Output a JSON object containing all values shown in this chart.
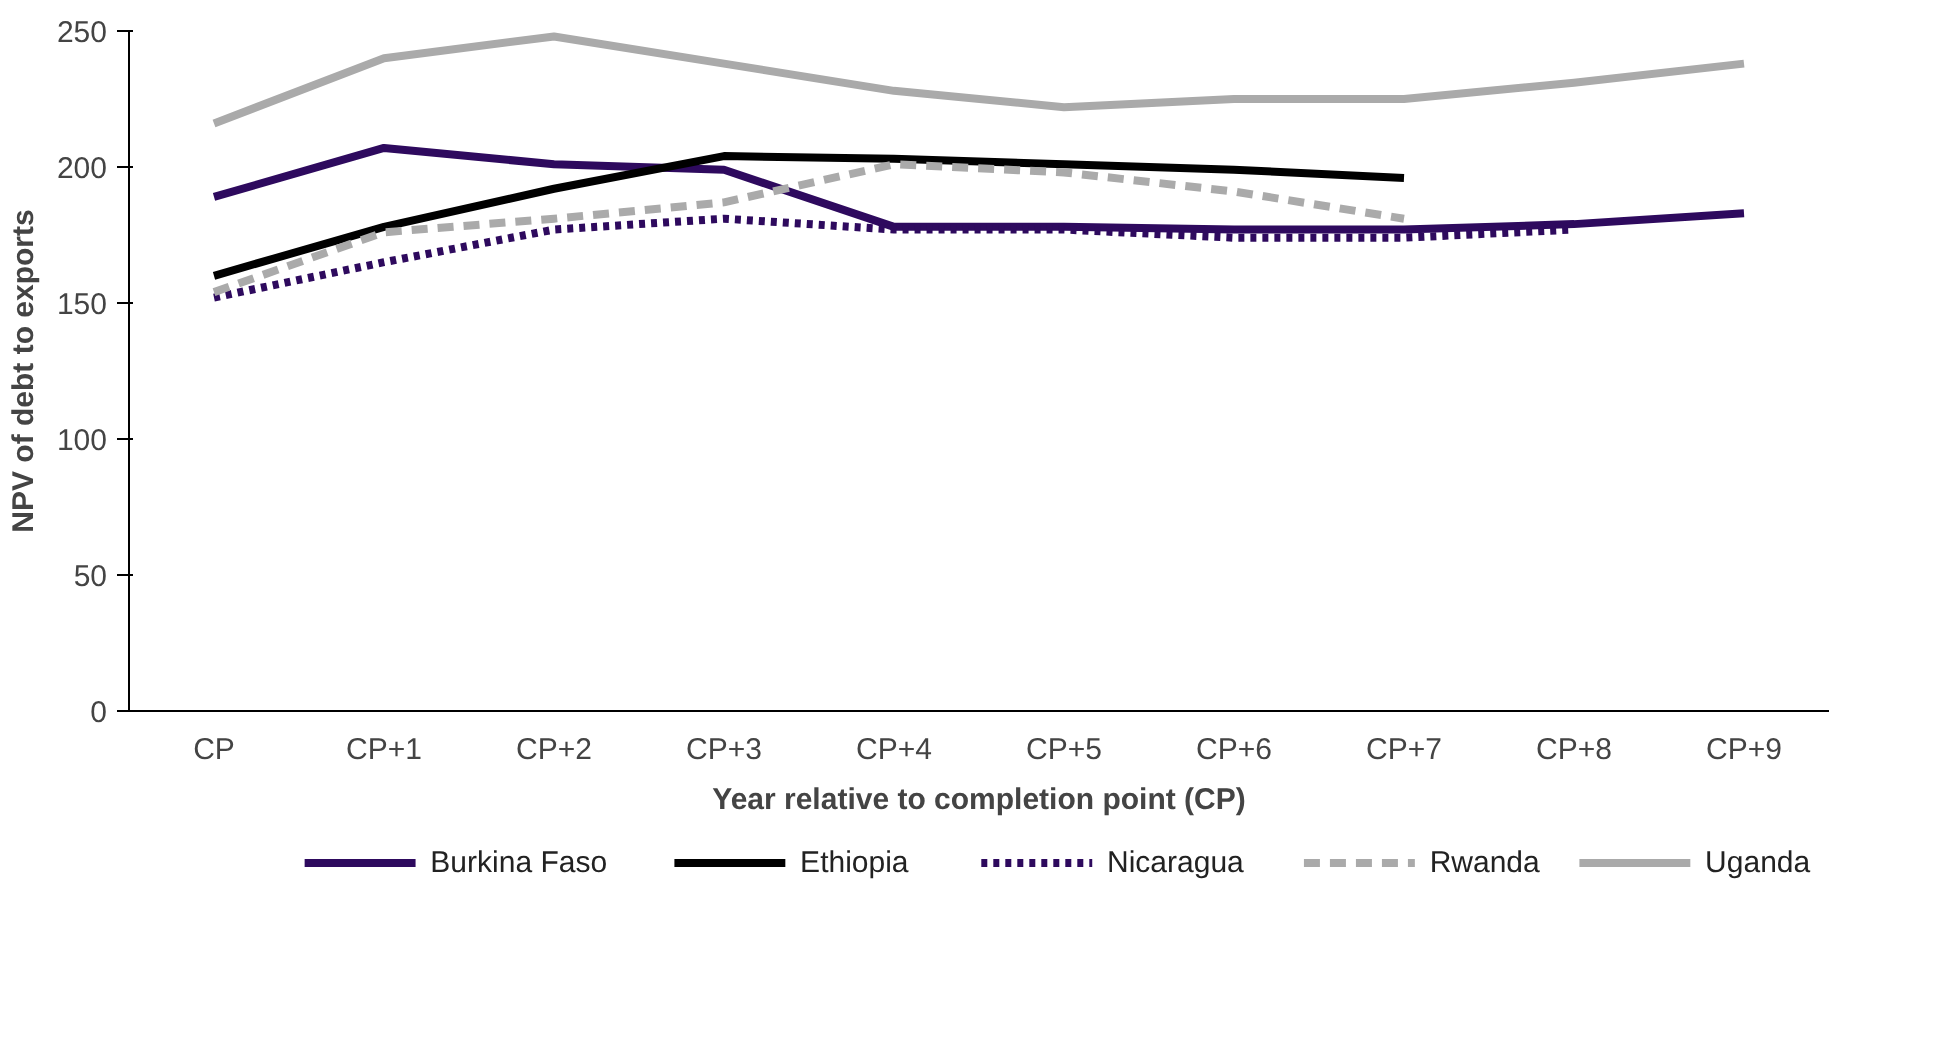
{
  "chart_data": {
    "type": "line",
    "xlabel": "Year relative to completion point (CP)",
    "ylabel": "NPV of debt to exports",
    "categories": [
      "CP",
      "CP+1",
      "CP+2",
      "CP+3",
      "CP+4",
      "CP+5",
      "CP+6",
      "CP+7",
      "CP+8",
      "CP+9"
    ],
    "ylim": [
      0,
      250
    ],
    "yticks": [
      0,
      50,
      100,
      150,
      200,
      250
    ],
    "grid": false,
    "legend": "bottom",
    "series": [
      {
        "name": "Burkina Faso",
        "color": "#2e0a5e",
        "line_style": "solid",
        "values": [
          189,
          207,
          201,
          199,
          178,
          178,
          177,
          177,
          179,
          183
        ]
      },
      {
        "name": "Ethiopia",
        "color": "#000000",
        "line_style": "solid",
        "values": [
          160,
          178,
          192,
          204,
          203,
          201,
          199,
          196,
          null,
          null
        ]
      },
      {
        "name": "Nicaragua",
        "color": "#2e0a5e",
        "line_style": "dotted",
        "values": [
          152,
          165,
          177,
          181,
          177,
          177,
          174,
          174,
          177,
          null
        ]
      },
      {
        "name": "Rwanda",
        "color": "#aaaaaa",
        "line_style": "dashed",
        "values": [
          154,
          176,
          181,
          187,
          201,
          198,
          191,
          181,
          null,
          null
        ]
      },
      {
        "name": "Uganda",
        "color": "#aaaaaa",
        "line_style": "solid",
        "values": [
          216,
          240,
          248,
          238,
          228,
          222,
          225,
          225,
          231,
          238
        ]
      }
    ]
  }
}
